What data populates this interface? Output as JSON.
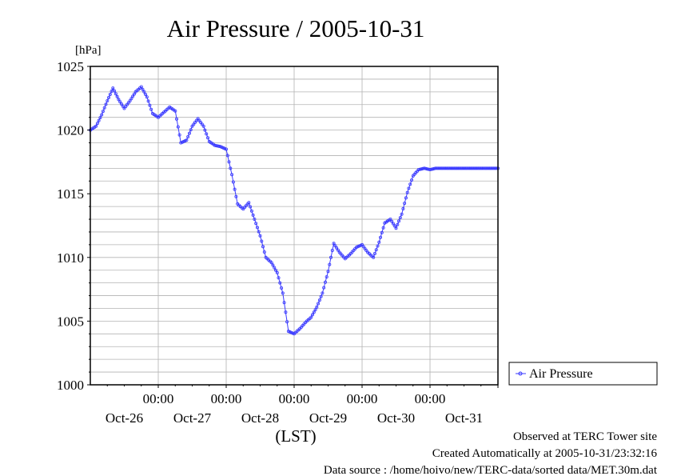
{
  "chart_data": {
    "type": "line",
    "title": "Air Pressure / 2005-10-31",
    "unit_label": "[hPa]",
    "xlabel": "(LST)",
    "ylabel": "",
    "ylim": [
      1000,
      1025
    ],
    "y_ticks": [
      1000,
      1005,
      1010,
      1015,
      1020,
      1025
    ],
    "y_tick_labels": [
      "1000",
      "1005",
      "1010",
      "1015",
      "1020",
      "1025"
    ],
    "x_range_hours": [
      0,
      144
    ],
    "x_major_ticks": [
      {
        "hour": 24,
        "time": "00:00",
        "date": "Oct-26"
      },
      {
        "hour": 48,
        "time": "00:00",
        "date": "Oct-27"
      },
      {
        "hour": 72,
        "time": "00:00",
        "date": "Oct-28"
      },
      {
        "hour": 96,
        "time": "00:00",
        "date": "Oct-29"
      },
      {
        "hour": 120,
        "time": "00:00",
        "date": "Oct-30"
      },
      {
        "hour": 144,
        "time": "",
        "date": "Oct-31"
      }
    ],
    "grid": true,
    "legend_position": "right",
    "series": [
      {
        "name": "Air Pressure",
        "color": "#3a3aff",
        "marker": "circle",
        "x": [
          0,
          2,
          4,
          6,
          8,
          10,
          12,
          14,
          16,
          18,
          20,
          22,
          24,
          26,
          28,
          30,
          32,
          34,
          36,
          38,
          40,
          42,
          44,
          46,
          48,
          50,
          52,
          54,
          56,
          58,
          60,
          62,
          64,
          66,
          68,
          70,
          72,
          74,
          76,
          78,
          80,
          82,
          84,
          86,
          88,
          90,
          92,
          94,
          96,
          98,
          100,
          102,
          104,
          106,
          108,
          110,
          112,
          114,
          116,
          118,
          120,
          122,
          124,
          126,
          128,
          130,
          132,
          134,
          136,
          138,
          140,
          142,
          144
        ],
        "y": [
          1020.0,
          1020.3,
          1021.2,
          1022.3,
          1023.3,
          1022.4,
          1021.7,
          1022.3,
          1023.0,
          1023.4,
          1022.6,
          1021.3,
          1021.0,
          1021.4,
          1021.8,
          1021.5,
          1019.0,
          1019.2,
          1020.3,
          1020.9,
          1020.3,
          1019.1,
          1018.8,
          1018.7,
          1018.5,
          1016.5,
          1014.2,
          1013.8,
          1014.3,
          1013.0,
          1011.7,
          1010.0,
          1009.6,
          1008.8,
          1007.2,
          1004.2,
          1004.0,
          1004.4,
          1004.9,
          1005.3,
          1006.1,
          1007.2,
          1008.9,
          1011.1,
          1010.4,
          1009.9,
          1010.3,
          1010.8,
          1011.0,
          1010.4,
          1010.0,
          1011.2,
          1012.7,
          1013.0,
          1012.3,
          1013.4,
          1015.1,
          1016.4,
          1016.9,
          1017.0,
          1016.9,
          1017.0,
          1017.0,
          1017.0,
          1017.0,
          1017.0,
          1017.0,
          1017.0,
          1017.0,
          1017.0,
          1017.0,
          1017.0,
          1017.0
        ]
      }
    ]
  },
  "footer": {
    "observed": "Observed at TERC Tower site",
    "created": "Created Automatically at 2005-10-31/23:32:16",
    "source": "Data source : /home/hoivo/new/TERC-data/sorted  data/MET.30m.dat"
  }
}
